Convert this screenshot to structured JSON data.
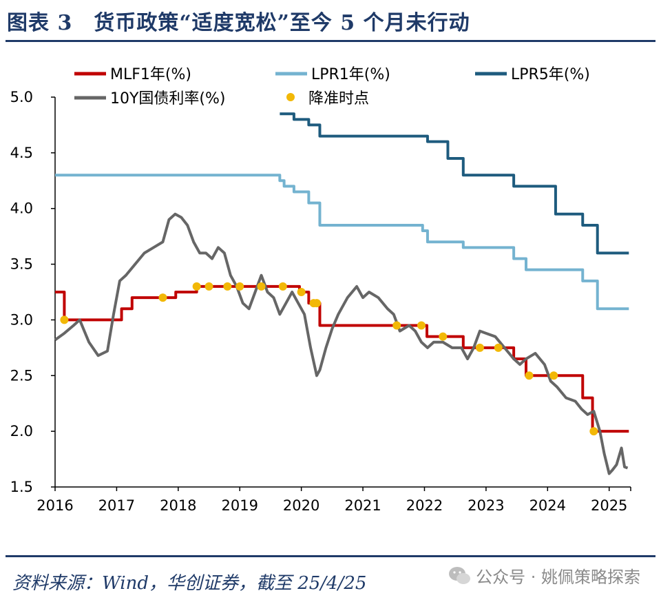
{
  "figure": {
    "title": "图表 3　货币政策“适度宽松”至今 5 个月未行动",
    "source": "资料来源：Wind，华创证券，截至 25/4/25",
    "watermark": "公众号 · 姚佩策略探索"
  },
  "chart_data": {
    "type": "line",
    "title": "",
    "xlabel": "",
    "ylabel": "",
    "xlim": [
      2016,
      2025.35
    ],
    "ylim": [
      1.5,
      5.0
    ],
    "yticks": [
      "5.0",
      "4.5",
      "4.0",
      "3.5",
      "3.0",
      "2.5",
      "2.0",
      "1.5"
    ],
    "xticks": [
      "2016",
      "2017",
      "2018",
      "2019",
      "2020",
      "2021",
      "2022",
      "2023",
      "2024",
      "2025"
    ],
    "legend_position": "top",
    "series": [
      {
        "name": "MLF1年(%)",
        "color": "#c00000",
        "step": true,
        "points": [
          [
            2016.0,
            3.25
          ],
          [
            2016.15,
            3.0
          ],
          [
            2017.08,
            3.1
          ],
          [
            2017.25,
            3.2
          ],
          [
            2017.96,
            3.25
          ],
          [
            2018.3,
            3.3
          ],
          [
            2019.97,
            3.25
          ],
          [
            2020.12,
            3.15
          ],
          [
            2020.3,
            2.95
          ],
          [
            2022.04,
            2.85
          ],
          [
            2022.63,
            2.75
          ],
          [
            2023.45,
            2.65
          ],
          [
            2023.65,
            2.5
          ],
          [
            2024.57,
            2.3
          ],
          [
            2024.73,
            2.0
          ],
          [
            2025.32,
            2.0
          ]
        ]
      },
      {
        "name": "LPR1年(%)",
        "color": "#74b3d0",
        "step": true,
        "points": [
          [
            2016.0,
            4.3
          ],
          [
            2019.65,
            4.25
          ],
          [
            2019.72,
            4.2
          ],
          [
            2019.88,
            4.15
          ],
          [
            2020.12,
            4.05
          ],
          [
            2020.3,
            3.85
          ],
          [
            2021.97,
            3.8
          ],
          [
            2022.05,
            3.7
          ],
          [
            2022.63,
            3.65
          ],
          [
            2023.45,
            3.55
          ],
          [
            2023.65,
            3.45
          ],
          [
            2024.57,
            3.35
          ],
          [
            2024.81,
            3.1
          ],
          [
            2025.32,
            3.1
          ]
        ]
      },
      {
        "name": "LPR5年(%)",
        "color": "#1e5b7e",
        "step": true,
        "points": [
          [
            2019.65,
            4.85
          ],
          [
            2019.88,
            4.8
          ],
          [
            2020.12,
            4.75
          ],
          [
            2020.3,
            4.65
          ],
          [
            2022.05,
            4.6
          ],
          [
            2022.38,
            4.45
          ],
          [
            2022.63,
            4.3
          ],
          [
            2023.45,
            4.2
          ],
          [
            2024.13,
            3.95
          ],
          [
            2024.57,
            3.85
          ],
          [
            2024.81,
            3.6
          ],
          [
            2025.32,
            3.6
          ]
        ]
      },
      {
        "name": "10Y国债利率(%)",
        "color": "#666666",
        "step": false,
        "points": [
          [
            2016.0,
            2.82
          ],
          [
            2016.15,
            2.88
          ],
          [
            2016.3,
            2.95
          ],
          [
            2016.4,
            3.0
          ],
          [
            2016.55,
            2.8
          ],
          [
            2016.7,
            2.68
          ],
          [
            2016.85,
            2.72
          ],
          [
            2016.95,
            3.05
          ],
          [
            2017.05,
            3.35
          ],
          [
            2017.15,
            3.4
          ],
          [
            2017.3,
            3.5
          ],
          [
            2017.45,
            3.6
          ],
          [
            2017.6,
            3.65
          ],
          [
            2017.75,
            3.7
          ],
          [
            2017.85,
            3.9
          ],
          [
            2017.95,
            3.95
          ],
          [
            2018.05,
            3.92
          ],
          [
            2018.15,
            3.85
          ],
          [
            2018.25,
            3.7
          ],
          [
            2018.35,
            3.6
          ],
          [
            2018.45,
            3.6
          ],
          [
            2018.55,
            3.55
          ],
          [
            2018.65,
            3.65
          ],
          [
            2018.75,
            3.6
          ],
          [
            2018.85,
            3.4
          ],
          [
            2018.95,
            3.3
          ],
          [
            2019.05,
            3.15
          ],
          [
            2019.15,
            3.1
          ],
          [
            2019.25,
            3.25
          ],
          [
            2019.35,
            3.4
          ],
          [
            2019.45,
            3.25
          ],
          [
            2019.55,
            3.2
          ],
          [
            2019.65,
            3.05
          ],
          [
            2019.75,
            3.15
          ],
          [
            2019.85,
            3.25
          ],
          [
            2019.95,
            3.15
          ],
          [
            2020.05,
            3.05
          ],
          [
            2020.15,
            2.75
          ],
          [
            2020.25,
            2.5
          ],
          [
            2020.3,
            2.55
          ],
          [
            2020.4,
            2.75
          ],
          [
            2020.5,
            2.92
          ],
          [
            2020.6,
            3.05
          ],
          [
            2020.75,
            3.2
          ],
          [
            2020.9,
            3.3
          ],
          [
            2021.0,
            3.2
          ],
          [
            2021.1,
            3.25
          ],
          [
            2021.25,
            3.2
          ],
          [
            2021.4,
            3.1
          ],
          [
            2021.5,
            3.05
          ],
          [
            2021.6,
            2.9
          ],
          [
            2021.75,
            2.95
          ],
          [
            2021.85,
            2.9
          ],
          [
            2021.95,
            2.8
          ],
          [
            2022.05,
            2.75
          ],
          [
            2022.15,
            2.8
          ],
          [
            2022.3,
            2.8
          ],
          [
            2022.45,
            2.75
          ],
          [
            2022.6,
            2.75
          ],
          [
            2022.7,
            2.65
          ],
          [
            2022.8,
            2.75
          ],
          [
            2022.9,
            2.9
          ],
          [
            2023.0,
            2.88
          ],
          [
            2023.15,
            2.85
          ],
          [
            2023.3,
            2.75
          ],
          [
            2023.45,
            2.65
          ],
          [
            2023.55,
            2.6
          ],
          [
            2023.65,
            2.65
          ],
          [
            2023.8,
            2.7
          ],
          [
            2023.95,
            2.6
          ],
          [
            2024.05,
            2.45
          ],
          [
            2024.15,
            2.4
          ],
          [
            2024.3,
            2.3
          ],
          [
            2024.45,
            2.27
          ],
          [
            2024.55,
            2.2
          ],
          [
            2024.65,
            2.15
          ],
          [
            2024.75,
            2.18
          ],
          [
            2024.85,
            2.0
          ],
          [
            2024.92,
            1.8
          ],
          [
            2025.0,
            1.62
          ],
          [
            2025.05,
            1.65
          ],
          [
            2025.12,
            1.7
          ],
          [
            2025.2,
            1.85
          ],
          [
            2025.25,
            1.68
          ],
          [
            2025.3,
            1.67
          ]
        ]
      },
      {
        "name": "降准时点",
        "color": "#f2b807",
        "type": "scatter",
        "points": [
          [
            2016.15,
            3.0
          ],
          [
            2017.75,
            3.2
          ],
          [
            2018.3,
            3.3
          ],
          [
            2018.5,
            3.3
          ],
          [
            2018.8,
            3.3
          ],
          [
            2019.0,
            3.3
          ],
          [
            2019.35,
            3.3
          ],
          [
            2019.7,
            3.3
          ],
          [
            2020.0,
            3.25
          ],
          [
            2020.2,
            3.15
          ],
          [
            2020.25,
            3.15
          ],
          [
            2021.55,
            2.95
          ],
          [
            2021.95,
            2.95
          ],
          [
            2022.3,
            2.85
          ],
          [
            2022.9,
            2.75
          ],
          [
            2023.2,
            2.75
          ],
          [
            2023.7,
            2.5
          ],
          [
            2024.1,
            2.5
          ],
          [
            2024.75,
            2.0
          ]
        ]
      }
    ]
  }
}
